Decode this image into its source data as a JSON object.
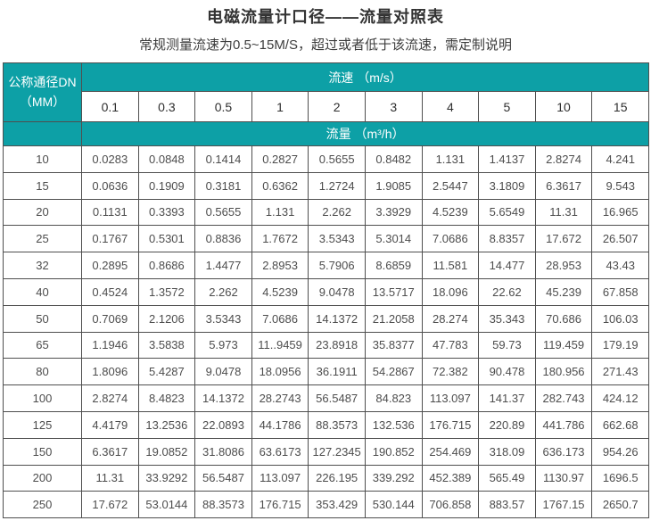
{
  "page": {
    "title": "电磁流量计口径——流量对照表",
    "subtitle": "常规测量流速为0.5~15M/S，超过或者低于该流速，需定制说明"
  },
  "table": {
    "corner_header_line1": "公称通径DN",
    "corner_header_line2": "（MM）",
    "velocity_header": "流速 （m/s）",
    "flow_header": "流量 （m³/h）",
    "velocities": [
      "0.1",
      "0.3",
      "0.5",
      "1",
      "2",
      "3",
      "4",
      "5",
      "10",
      "15"
    ],
    "rows": [
      {
        "dn": "10",
        "values": [
          "0.0283",
          "0.0848",
          "0.1414",
          "0.2827",
          "0.5655",
          "0.8482",
          "1.131",
          "1.4137",
          "2.8274",
          "4.241"
        ]
      },
      {
        "dn": "15",
        "values": [
          "0.0636",
          "0.1909",
          "0.3181",
          "0.6362",
          "1.2724",
          "1.9085",
          "2.5447",
          "3.1809",
          "6.3617",
          "9.543"
        ]
      },
      {
        "dn": "20",
        "values": [
          "0.1131",
          "0.3393",
          "0.5655",
          "1.131",
          "2.262",
          "3.3929",
          "4.5239",
          "5.6549",
          "11.31",
          "16.965"
        ]
      },
      {
        "dn": "25",
        "values": [
          "0.1767",
          "0.5301",
          "0.8836",
          "1.7672",
          "3.5343",
          "5.3014",
          "7.0686",
          "8.8357",
          "17.672",
          "26.507"
        ]
      },
      {
        "dn": "32",
        "values": [
          "0.2895",
          "0.8686",
          "1.4477",
          "2.8953",
          "5.7906",
          "8.6859",
          "11.581",
          "14.477",
          "28.953",
          "43.43"
        ]
      },
      {
        "dn": "40",
        "values": [
          "0.4524",
          "1.3572",
          "2.262",
          "4.5239",
          "9.0478",
          "13.5717",
          "18.096",
          "22.62",
          "45.239",
          "67.858"
        ]
      },
      {
        "dn": "50",
        "values": [
          "0.7069",
          "2.1206",
          "3.5343",
          "7.0686",
          "14.1372",
          "21.2058",
          "28.274",
          "35.343",
          "70.686",
          "106.03"
        ]
      },
      {
        "dn": "65",
        "values": [
          "1.1946",
          "3.5838",
          "5.973",
          "11..9459",
          "23.8918",
          "35.8377",
          "47.783",
          "59.73",
          "119.459",
          "179.19"
        ]
      },
      {
        "dn": "80",
        "values": [
          "1.8096",
          "5.4287",
          "9.0478",
          "18.0956",
          "36.1911",
          "54.2867",
          "72.382",
          "90.478",
          "180.956",
          "271.43"
        ]
      },
      {
        "dn": "100",
        "values": [
          "2.8274",
          "8.4823",
          "14.1372",
          "28.2743",
          "56.5487",
          "84.823",
          "113.097",
          "141.37",
          "282.743",
          "424.12"
        ]
      },
      {
        "dn": "125",
        "values": [
          "4.4179",
          "13.2536",
          "22.0893",
          "44.1786",
          "88.3573",
          "132.536",
          "176.715",
          "220.89",
          "441.786",
          "662.68"
        ]
      },
      {
        "dn": "150",
        "values": [
          "6.3617",
          "19.0852",
          "31.8086",
          "63.6173",
          "127.2345",
          "190.852",
          "254.469",
          "318.09",
          "636.173",
          "954.26"
        ]
      },
      {
        "dn": "200",
        "values": [
          "11.31",
          "33.9292",
          "56.5487",
          "113.097",
          "226.195",
          "339.292",
          "452.389",
          "565.49",
          "1130.97",
          "1696.5"
        ]
      },
      {
        "dn": "250",
        "values": [
          "17.672",
          "53.0144",
          "88.3573",
          "176.715",
          "353.429",
          "530.144",
          "706.858",
          "883.57",
          "1767.15",
          "2650.7"
        ]
      }
    ]
  },
  "colors": {
    "header_teal": "#0da0a6",
    "border": "#4f4f4f",
    "title_text": "#333333",
    "number_text": "#4d4d4d"
  }
}
